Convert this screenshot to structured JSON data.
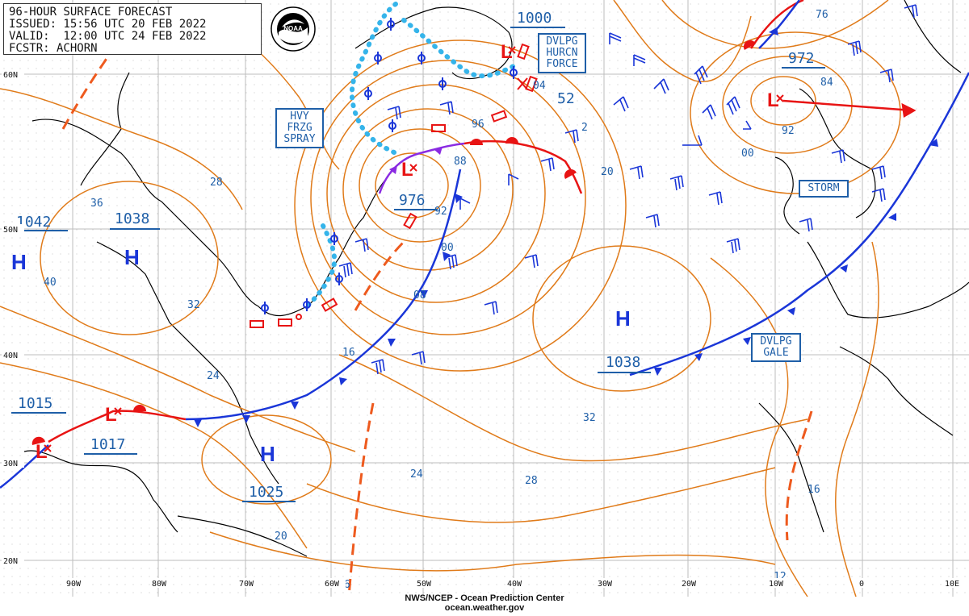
{
  "header": {
    "line1": "96-HOUR SURFACE FORECAST",
    "line2": "ISSUED: 15:56 UTC 20 FEB 2022",
    "line3": "VALID:  12:00 UTC 24 FEB 2022",
    "line4": "FCSTR: ACHORN",
    "logo_text": "NOAA"
  },
  "footer": {
    "line1": "NWS/NCEP - Ocean Prediction Center",
    "line2": "ocean.weather.gov"
  },
  "lat_labels": [
    "60N",
    "50N",
    "40N",
    "30N",
    "20N"
  ],
  "lon_labels": [
    "90W",
    "80W",
    "70W",
    "60W",
    "50W",
    "40W",
    "30W",
    "20W",
    "10W",
    "0",
    "10E"
  ],
  "pressure_centers": [
    {
      "type": "H",
      "value": "1042"
    },
    {
      "type": "H",
      "value": "1038"
    },
    {
      "type": "H",
      "value": "1038"
    },
    {
      "type": "H",
      "value": "1025"
    },
    {
      "type": "H",
      "value": "1017"
    },
    {
      "type": "L",
      "value": "976"
    },
    {
      "type": "L",
      "value": "1000"
    },
    {
      "type": "L",
      "value": "972"
    },
    {
      "type": "L",
      "value": "1015"
    }
  ],
  "isobar_labels": [
    "28",
    "36",
    "40",
    "32",
    "24",
    "16",
    "08",
    "00",
    "92",
    "88",
    "96",
    "04",
    "52",
    "2",
    "20",
    "84",
    "92",
    "00",
    "76",
    "32",
    "28",
    "24",
    "20",
    "16",
    "16",
    "12"
  ],
  "warning_boxes": [
    {
      "id": "hvy-frzg-spray",
      "lines": [
        "HVY",
        "FRZG",
        "SPRAY"
      ]
    },
    {
      "id": "dvlpg-hurcn-force",
      "lines": [
        "DVLPG",
        "HURCN",
        "FORCE"
      ]
    },
    {
      "id": "storm",
      "lines": [
        "STORM"
      ]
    },
    {
      "id": "dvlpg-gale",
      "lines": [
        "DVLPG",
        "GALE"
      ]
    }
  ],
  "colors": {
    "isobar": "#e07b1a",
    "cold_front": "#1a36d8",
    "warm_front": "#e81414",
    "occluded_front": "#8a2be2",
    "ice": "#35b4ea",
    "box": "#1f5fa8",
    "land": "#000000",
    "grid": "#bdbdbd",
    "trough": "#ee5a1e"
  }
}
